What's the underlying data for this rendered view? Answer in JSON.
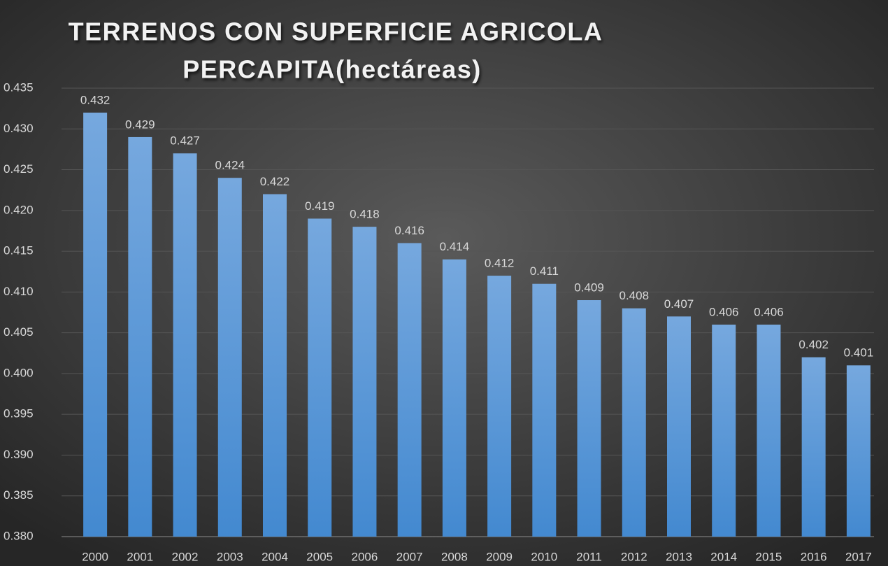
{
  "chart_data": {
    "type": "bar",
    "title": [
      "TERRENOS CON SUPERFICIE AGRICOLA",
      "PERCAPITA(hectáreas)"
    ],
    "categories": [
      "2000",
      "2001",
      "2002",
      "2003",
      "2004",
      "2005",
      "2006",
      "2007",
      "2008",
      "2009",
      "2010",
      "2011",
      "2012",
      "2013",
      "2014",
      "2015",
      "2016",
      "2017"
    ],
    "values": [
      0.432,
      0.429,
      0.427,
      0.424,
      0.422,
      0.419,
      0.418,
      0.416,
      0.414,
      0.412,
      0.411,
      0.409,
      0.408,
      0.407,
      0.406,
      0.406,
      0.402,
      0.401
    ],
    "color": "#5b9bd5",
    "ylim": [
      0.38,
      0.435
    ],
    "yticks": [
      {
        "value": 0.38,
        "label": "0.380"
      },
      {
        "value": 0.385,
        "label": "0.385"
      },
      {
        "value": 0.39,
        "label": "0.390"
      },
      {
        "value": 0.395,
        "label": "0.395"
      },
      {
        "value": 0.4,
        "label": "0.400"
      },
      {
        "value": 0.405,
        "label": "0.405"
      },
      {
        "value": 0.41,
        "label": "0.410"
      },
      {
        "value": 0.415,
        "label": "0.415"
      },
      {
        "value": 0.42,
        "label": "0.420"
      },
      {
        "value": 0.425,
        "label": "0.425"
      },
      {
        "value": 0.43,
        "label": "0.430"
      },
      {
        "value": 0.435,
        "label": "0.435"
      }
    ],
    "grid": true
  }
}
